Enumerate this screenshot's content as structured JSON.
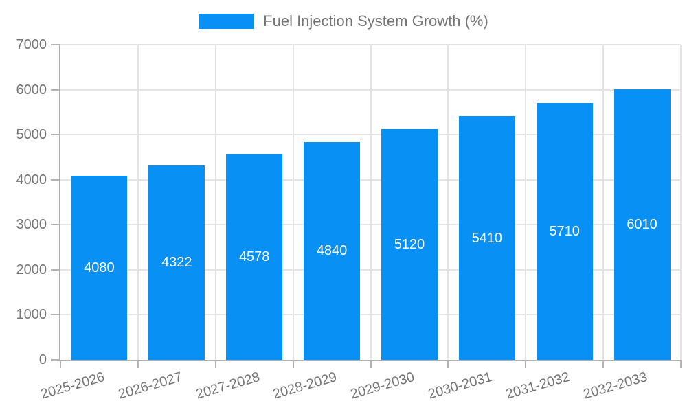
{
  "chart_data": {
    "type": "bar",
    "title": "Fuel Injection System Growth (%)",
    "categories": [
      "2025-2026",
      "2026-2027",
      "2027-2028",
      "2028-2029",
      "2029-2030",
      "2030-2031",
      "2031-2032",
      "2032-2033"
    ],
    "values": [
      4080,
      4322,
      4578,
      4840,
      5120,
      5410,
      5710,
      6010
    ],
    "value_labels": [
      "4080",
      "4322",
      "4578",
      "4840",
      "5120",
      "5410",
      "5710",
      "6010"
    ],
    "xlabel": "",
    "ylabel": "",
    "ylim": [
      0,
      7000
    ],
    "yticks": [
      "0",
      "1000",
      "2000",
      "3000",
      "4000",
      "5000",
      "6000",
      "7000"
    ],
    "grid": "on",
    "legend_position": "top",
    "value_label_position": "inside-center"
  },
  "colors": {
    "bar": "#0990f5",
    "grid": "#e4e4e4",
    "axis": "#b0b0b0",
    "tick": "#b3b3b3",
    "text": "#757575",
    "value_label": "#ffffff",
    "background": "#ffffff"
  }
}
